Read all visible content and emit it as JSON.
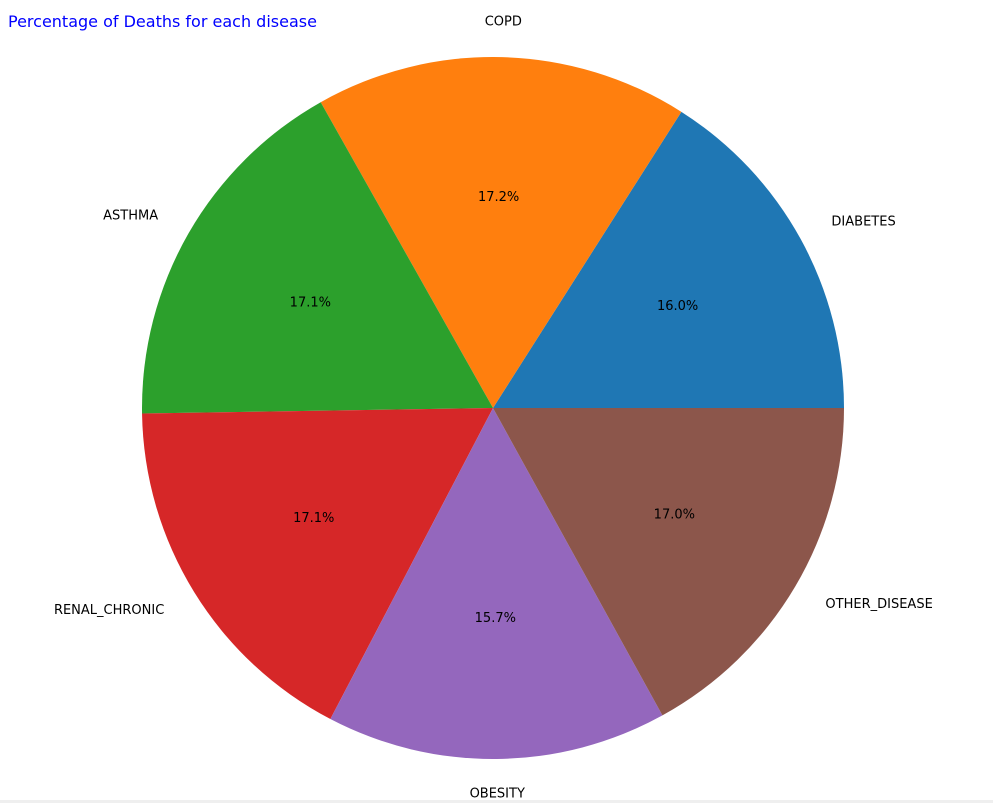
{
  "chart_data": {
    "type": "pie",
    "title": "Percentage of Deaths for each disease",
    "title_color": "#0000ff",
    "categories": [
      "DIABETES",
      "COPD",
      "ASTHMA",
      "RENAL_CHRONIC",
      "OBESITY",
      "OTHER_DISEASE"
    ],
    "values": [
      16.0,
      17.2,
      17.1,
      17.1,
      15.7,
      17.0
    ],
    "value_labels": [
      "16.0%",
      "17.2%",
      "17.1%",
      "17.1%",
      "15.7%",
      "17.0%"
    ],
    "colors": [
      "#1f77b4",
      "#ff7f0e",
      "#2ca02c",
      "#d62728",
      "#9467bd",
      "#8c564b"
    ],
    "start_angle_deg": 0,
    "direction": "counterclockwise",
    "legend": "none"
  }
}
